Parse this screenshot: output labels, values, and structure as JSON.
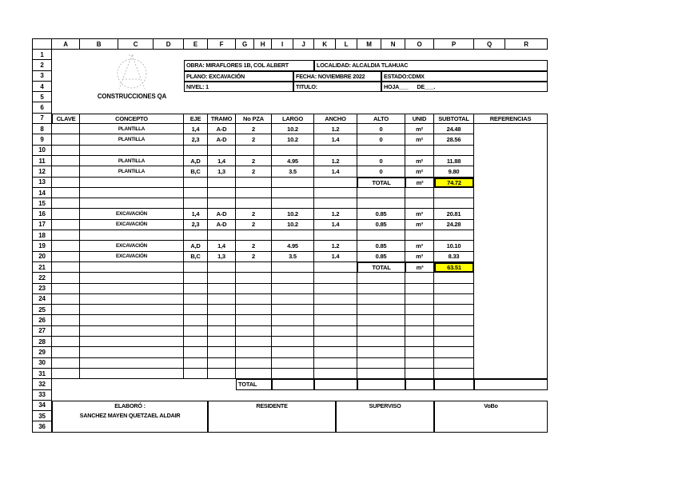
{
  "sheet": {
    "column_letters": [
      "",
      "A",
      "B",
      "C",
      "D",
      "E",
      "F",
      "G",
      "H",
      "I",
      "J",
      "K",
      "L",
      "M",
      "N",
      "O",
      "P",
      "Q",
      "R"
    ],
    "row_numbers": [
      "1",
      "2",
      "3",
      "4",
      "5",
      "6",
      "7",
      "8",
      "9",
      "10",
      "11",
      "12",
      "13",
      "14",
      "15",
      "16",
      "17",
      "18",
      "19",
      "20",
      "21",
      "22",
      "23",
      "24",
      "25",
      "26",
      "27",
      "28",
      "29",
      "30",
      "31",
      "32",
      "33",
      "34",
      "35",
      "36"
    ]
  },
  "logo": {
    "company": "CONSTRUCCIONES QA"
  },
  "title_block": {
    "obra": "OBRA: MIRAFLORES 1B, COL ALBERT",
    "localidad": "LOCALIDAD: ALCALDIA TLAHUAC",
    "plano": "PLANO: EXCAVACIÓN",
    "fecha": "FECHA: NOVIEMBRE 2022",
    "estado": "ESTADO:CDMX",
    "nivel": "NIVEL: 1",
    "titulo": "TITULO:",
    "hoja": "HOJA___      DE___."
  },
  "table": {
    "headers": {
      "clave": "CLAVE",
      "concepto": "CONCEPTO",
      "eje": "EJE",
      "tramo": "TRAMO",
      "pza": "No PZA",
      "largo": "LARGO",
      "ancho": "ANCHO",
      "alto": "ALTO",
      "unid": "UNID",
      "subtotal": "SUBTOTAL",
      "referencias": "REFERENCIAS"
    },
    "rows": [
      {
        "clave": "",
        "concepto": "PLANTILLA",
        "eje": "1,4",
        "tramo": "A-D",
        "pza": "2",
        "largo": "10.2",
        "ancho": "1.2",
        "alto": "0",
        "unid": "m²",
        "subtotal": "24.48"
      },
      {
        "clave": "",
        "concepto": "PLANTILLA",
        "eje": "2,3",
        "tramo": "A-D",
        "pza": "2",
        "largo": "10.2",
        "ancho": "1.4",
        "alto": "0",
        "unid": "m²",
        "subtotal": "28.56"
      },
      {
        "clave": "",
        "concepto": "",
        "eje": "",
        "tramo": "",
        "pza": "",
        "largo": "",
        "ancho": "",
        "alto": "",
        "unid": "",
        "subtotal": ""
      },
      {
        "clave": "",
        "concepto": "PLANTILLA",
        "eje": "A,D",
        "tramo": "1,4",
        "pza": "2",
        "largo": "4.95",
        "ancho": "1.2",
        "alto": "0",
        "unid": "m²",
        "subtotal": "11.88"
      },
      {
        "clave": "",
        "concepto": "PLANTILLA",
        "eje": "B,C",
        "tramo": "1,3",
        "pza": "2",
        "largo": "3.5",
        "ancho": "1.4",
        "alto": "0",
        "unid": "m²",
        "subtotal": "9.80"
      },
      {
        "total": true,
        "clave": "",
        "concepto": "",
        "eje": "",
        "tramo": "",
        "pza": "",
        "largo": "",
        "ancho": "",
        "alto": "TOTAL",
        "unid": "m²",
        "subtotal": "74.72"
      },
      {
        "clave": "",
        "concepto": "",
        "eje": "",
        "tramo": "",
        "pza": "",
        "largo": "",
        "ancho": "",
        "alto": "",
        "unid": "",
        "subtotal": ""
      },
      {
        "clave": "",
        "concepto": "",
        "eje": "",
        "tramo": "",
        "pza": "",
        "largo": "",
        "ancho": "",
        "alto": "",
        "unid": "",
        "subtotal": ""
      },
      {
        "clave": "",
        "concepto": "EXCAVACIÓN",
        "eje": "1,4",
        "tramo": "A-D",
        "pza": "2",
        "largo": "10.2",
        "ancho": "1.2",
        "alto": "0.85",
        "unid": "m³",
        "subtotal": "20.81"
      },
      {
        "clave": "",
        "concepto": "EXCAVACIÓN",
        "eje": "2,3",
        "tramo": "A-D",
        "pza": "2",
        "largo": "10.2",
        "ancho": "1.4",
        "alto": "0.85",
        "unid": "m³",
        "subtotal": "24.28"
      },
      {
        "clave": "",
        "concepto": "",
        "eje": "",
        "tramo": "",
        "pza": "",
        "largo": "",
        "ancho": "",
        "alto": "",
        "unid": "",
        "subtotal": ""
      },
      {
        "clave": "",
        "concepto": "EXCAVACIÓN",
        "eje": "A,D",
        "tramo": "1,4",
        "pza": "2",
        "largo": "4.95",
        "ancho": "1.2",
        "alto": "0.85",
        "unid": "m³",
        "subtotal": "10.10"
      },
      {
        "clave": "",
        "concepto": "EXCAVACIÓN",
        "eje": "B,C",
        "tramo": "1,3",
        "pza": "2",
        "largo": "3.5",
        "ancho": "1.4",
        "alto": "0.85",
        "unid": "m³",
        "subtotal": "8.33"
      },
      {
        "total": true,
        "clave": "",
        "concepto": "",
        "eje": "",
        "tramo": "",
        "pza": "",
        "largo": "",
        "ancho": "",
        "alto": "TOTAL",
        "unid": "m³",
        "subtotal": "63.51"
      },
      {
        "clave": "",
        "concepto": "",
        "eje": "",
        "tramo": "",
        "pza": "",
        "largo": "",
        "ancho": "",
        "alto": "",
        "unid": "",
        "subtotal": ""
      },
      {
        "clave": "",
        "concepto": "",
        "eje": "",
        "tramo": "",
        "pza": "",
        "largo": "",
        "ancho": "",
        "alto": "",
        "unid": "",
        "subtotal": ""
      },
      {
        "clave": "",
        "concepto": "",
        "eje": "",
        "tramo": "",
        "pza": "",
        "largo": "",
        "ancho": "",
        "alto": "",
        "unid": "",
        "subtotal": ""
      },
      {
        "clave": "",
        "concepto": "",
        "eje": "",
        "tramo": "",
        "pza": "",
        "largo": "",
        "ancho": "",
        "alto": "",
        "unid": "",
        "subtotal": ""
      },
      {
        "clave": "",
        "concepto": "",
        "eje": "",
        "tramo": "",
        "pza": "",
        "largo": "",
        "ancho": "",
        "alto": "",
        "unid": "",
        "subtotal": ""
      },
      {
        "clave": "",
        "concepto": "",
        "eje": "",
        "tramo": "",
        "pza": "",
        "largo": "",
        "ancho": "",
        "alto": "",
        "unid": "",
        "subtotal": ""
      },
      {
        "clave": "",
        "concepto": "",
        "eje": "",
        "tramo": "",
        "pza": "",
        "largo": "",
        "ancho": "",
        "alto": "",
        "unid": "",
        "subtotal": ""
      },
      {
        "clave": "",
        "concepto": "",
        "eje": "",
        "tramo": "",
        "pza": "",
        "largo": "",
        "ancho": "",
        "alto": "",
        "unid": "",
        "subtotal": ""
      },
      {
        "clave": "",
        "concepto": "",
        "eje": "",
        "tramo": "",
        "pza": "",
        "largo": "",
        "ancho": "",
        "alto": "",
        "unid": "",
        "subtotal": ""
      },
      {
        "clave": "",
        "concepto": "",
        "eje": "",
        "tramo": "",
        "pza": "",
        "largo": "",
        "ancho": "",
        "alto": "",
        "unid": "",
        "subtotal": ""
      }
    ],
    "totals": [
      {
        "row": 13,
        "label": "TOTAL",
        "unid": "m²",
        "value": "74.72"
      },
      {
        "row": 21,
        "label": "TOTAL",
        "unid": "m³",
        "value": "63.51"
      }
    ],
    "grand_total_label": "TOTAL",
    "referencias_value": ""
  },
  "signatures": {
    "elaboro_label": "ELABORÓ :",
    "elaboro_name": "SANCHEZ MAYEN QUETZAEL ALDAIR",
    "residente_label": "RESIDENTE",
    "superviso_label": "SUPERVISO",
    "vobo_label": "VoBo"
  },
  "colors": {
    "highlight": "#FFFF00",
    "grid_line": "#000000",
    "logo_stroke": "#BDBDBD"
  }
}
